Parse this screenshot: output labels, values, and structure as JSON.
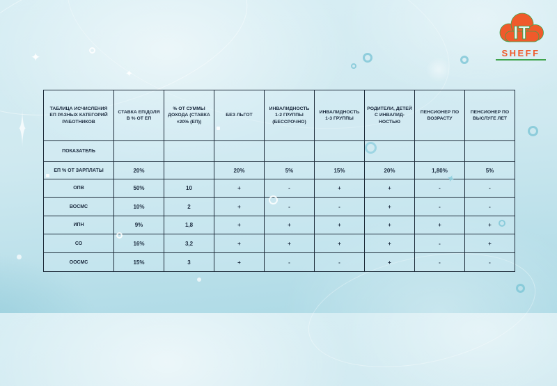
{
  "logo": {
    "monogram": "IT",
    "wordmark": "SHEFF",
    "cloud_color": "#f05a2b",
    "green_color": "#3fa34d"
  },
  "table": {
    "columns": [
      "ТАБЛИЦА ИСЧИСЛЕНИЯ ЕП РАЗНЫХ КАТЕГОРИЙ РАБОТНИКОВ",
      "СТАВКА ЕП/ДОЛЯ В % ОТ ЕП",
      "% ОТ СУММЫ ДОХОДА (СТАВКА ×20% (ЕП))",
      "БЕЗ ЛЬГОТ",
      "ИНВАЛИДНОСТЬ 1-2 ГРУППЫ (БЕССРОЧНО)",
      "ИНВАЛИДНОСТЬ 1-3 ГРУППЫ",
      "РОДИТЕЛИ, ДЕТЕЙ С ИНВАЛИД-НОСТЬЮ",
      "ПЕНСИОНЕР ПО ВОЗРАСТУ",
      "ПЕНСИОНЕР ПО ВЫСЛУГЕ ЛЕТ"
    ],
    "rows": [
      {
        "label": "ПОКАЗАТЕЛЬ",
        "values": [
          "",
          "",
          "",
          "",
          "",
          "",
          "",
          ""
        ]
      },
      {
        "label": "ЕП % ОТ ЗАРПЛАТЫ",
        "values": [
          "20%",
          "",
          "20%",
          "5%",
          "15%",
          "20%",
          "1,80%",
          "5%"
        ]
      },
      {
        "label": "ОПВ",
        "values": [
          "50%",
          "10",
          "+",
          "-",
          "+",
          "+",
          "-",
          "-"
        ]
      },
      {
        "label": "ВОСМС",
        "values": [
          "10%",
          "2",
          "+",
          "-",
          "-",
          "+",
          "-",
          "-"
        ]
      },
      {
        "label": "ИПН",
        "values": [
          "9%",
          "1,8",
          "+",
          "+",
          "+",
          "+",
          "+",
          "+"
        ]
      },
      {
        "label": "СО",
        "values": [
          "16%",
          "3,2",
          "+",
          "+",
          "+",
          "+",
          "-",
          "+"
        ]
      },
      {
        "label": "ООСМС",
        "values": [
          "15%",
          "3",
          "+",
          "-",
          "-",
          "+",
          "-",
          "-"
        ]
      }
    ]
  },
  "icons": {
    "logo_icon": "cloud-icon",
    "decor": [
      "sparkle-icon",
      "ring-icon",
      "orbit-icon",
      "square-icon",
      "dot-icon"
    ]
  },
  "colors": {
    "background_top": "#d8eef4",
    "background_bottom": "#abd9e5",
    "table_border": "#1c2a38",
    "text": "#1b2a3e",
    "accent_orange": "#f05a2b",
    "accent_green": "#3fa34d",
    "decor_blue": "#7dc6d6"
  }
}
